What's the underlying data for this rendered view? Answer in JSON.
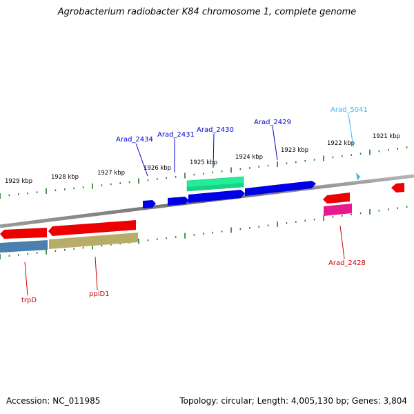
{
  "title": "Agrobacterium radiobacter K84 chromosome 1, complete genome",
  "footer": {
    "accession": "Accession: NC_011985",
    "summary": "Topology: circular; Length: 4,005,130 bp; Genes: 3,804"
  },
  "colors": {
    "backbone": "#7a7a7a",
    "tick": "#1f7a1f",
    "blue_gene": "#0000e6",
    "red_gene": "#ee0000",
    "green_gene": "#22ee99",
    "steelblue_gene": "#4a7fb0",
    "khaki_gene": "#b8ac6a",
    "pink_gene": "#e8198c",
    "cyan_gene": "#33bbee",
    "label_blue": "#0000cc",
    "label_red": "#cc0000",
    "label_cyan": "#33bbee"
  },
  "kbp_labels": [
    "1929 kbp",
    "1928 kbp",
    "1927 kbp",
    "1926 kbp",
    "1925 kbp",
    "1924 kbp",
    "1923 kbp",
    "1922 kbp",
    "1921 kbp"
  ],
  "genes_upper": [
    {
      "label": "Arad_2434",
      "color": "label_blue"
    },
    {
      "label": "Arad_2431",
      "color": "label_blue"
    },
    {
      "label": "Arad_2430",
      "color": "label_blue"
    },
    {
      "label": "Arad_2429",
      "color": "label_blue"
    },
    {
      "label": "Arad_5041",
      "color": "label_cyan"
    }
  ],
  "genes_lower": [
    {
      "label": "trpD",
      "color": "label_red"
    },
    {
      "label": "ppiD1",
      "color": "label_red"
    },
    {
      "label": "Arad_2428",
      "color": "label_red"
    }
  ]
}
